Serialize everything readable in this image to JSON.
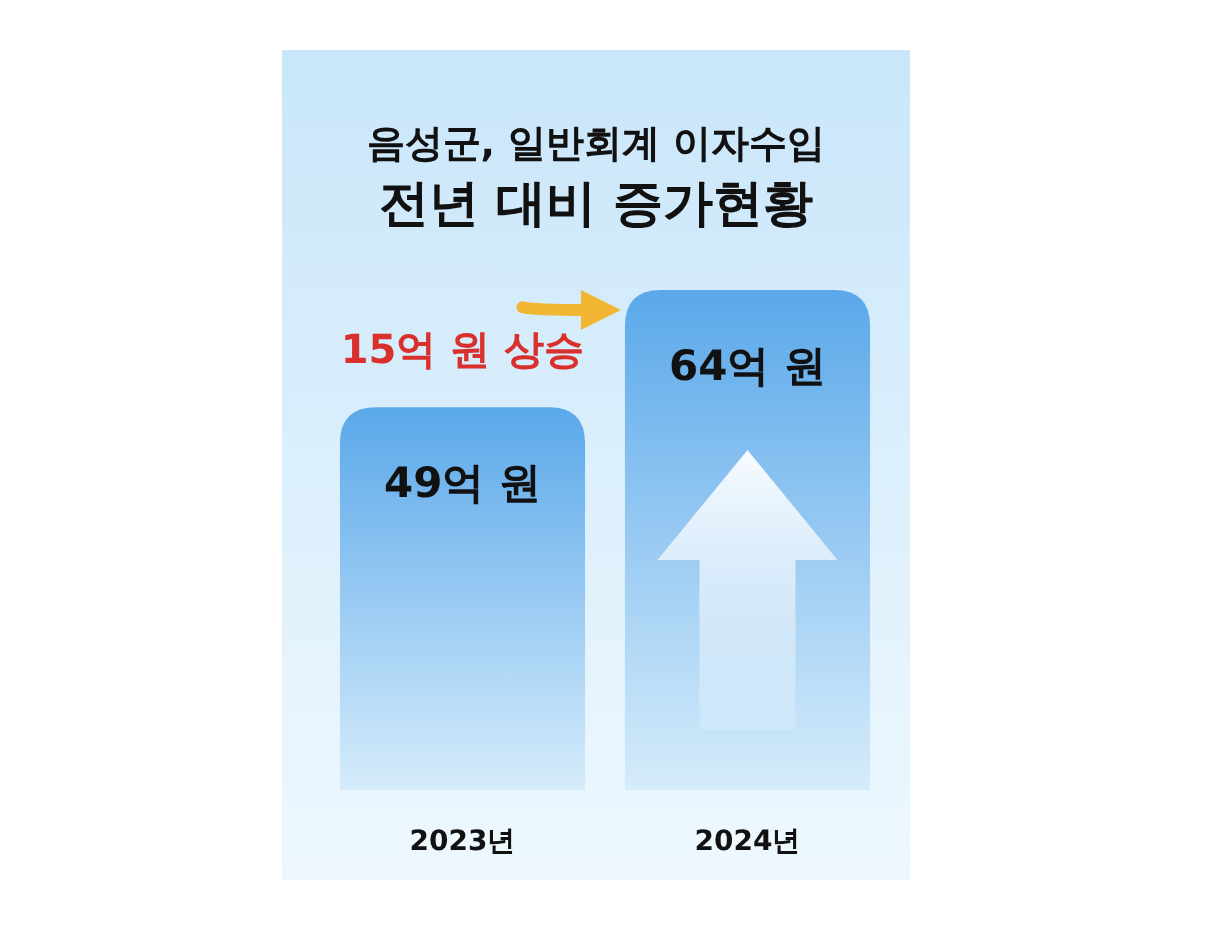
{
  "chart_data": {
    "type": "bar",
    "title": "음성군, 일반회계 이자수입",
    "subtitle": "전년 대비 증가현황",
    "categories": [
      "2023년",
      "2024년"
    ],
    "values": [
      49,
      64
    ],
    "value_labels": [
      "49억 원",
      "64억 원"
    ],
    "color": "#5aa8ea",
    "annotations": [
      "15억 원 상승"
    ]
  }
}
